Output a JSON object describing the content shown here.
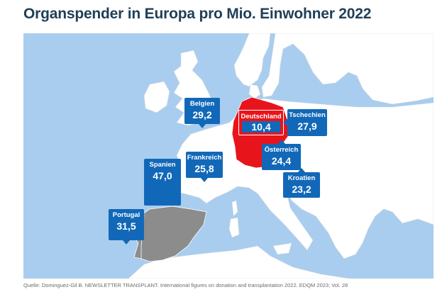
{
  "title": "Organspender in Europa pro Mio. Einwohner 2022",
  "source": "Quelle: Dominguez-Gil B. NEWSLETTER TRANSPLANT. International figures on donation and transplantation 2022. EDQM 2023; Vol. 28",
  "colors": {
    "sea": "#a9cdee",
    "land": "#ffffff",
    "highlight_germany": "#e8141b",
    "highlight_iberia": "#8c8c8c",
    "callout": "#1268b8",
    "title": "#1f3f57"
  },
  "callouts": [
    {
      "country": "Belgien",
      "value": "29,2"
    },
    {
      "country": "Deutschland",
      "value": "10,4"
    },
    {
      "country": "Tschechien",
      "value": "27,9"
    },
    {
      "country": "Frankreich",
      "value": "25,8"
    },
    {
      "country": "Österreich",
      "value": "24,4"
    },
    {
      "country": "Spanien",
      "value": "47,0"
    },
    {
      "country": "Kroatien",
      "value": "23,2"
    },
    {
      "country": "Portugal",
      "value": "31,5"
    }
  ]
}
